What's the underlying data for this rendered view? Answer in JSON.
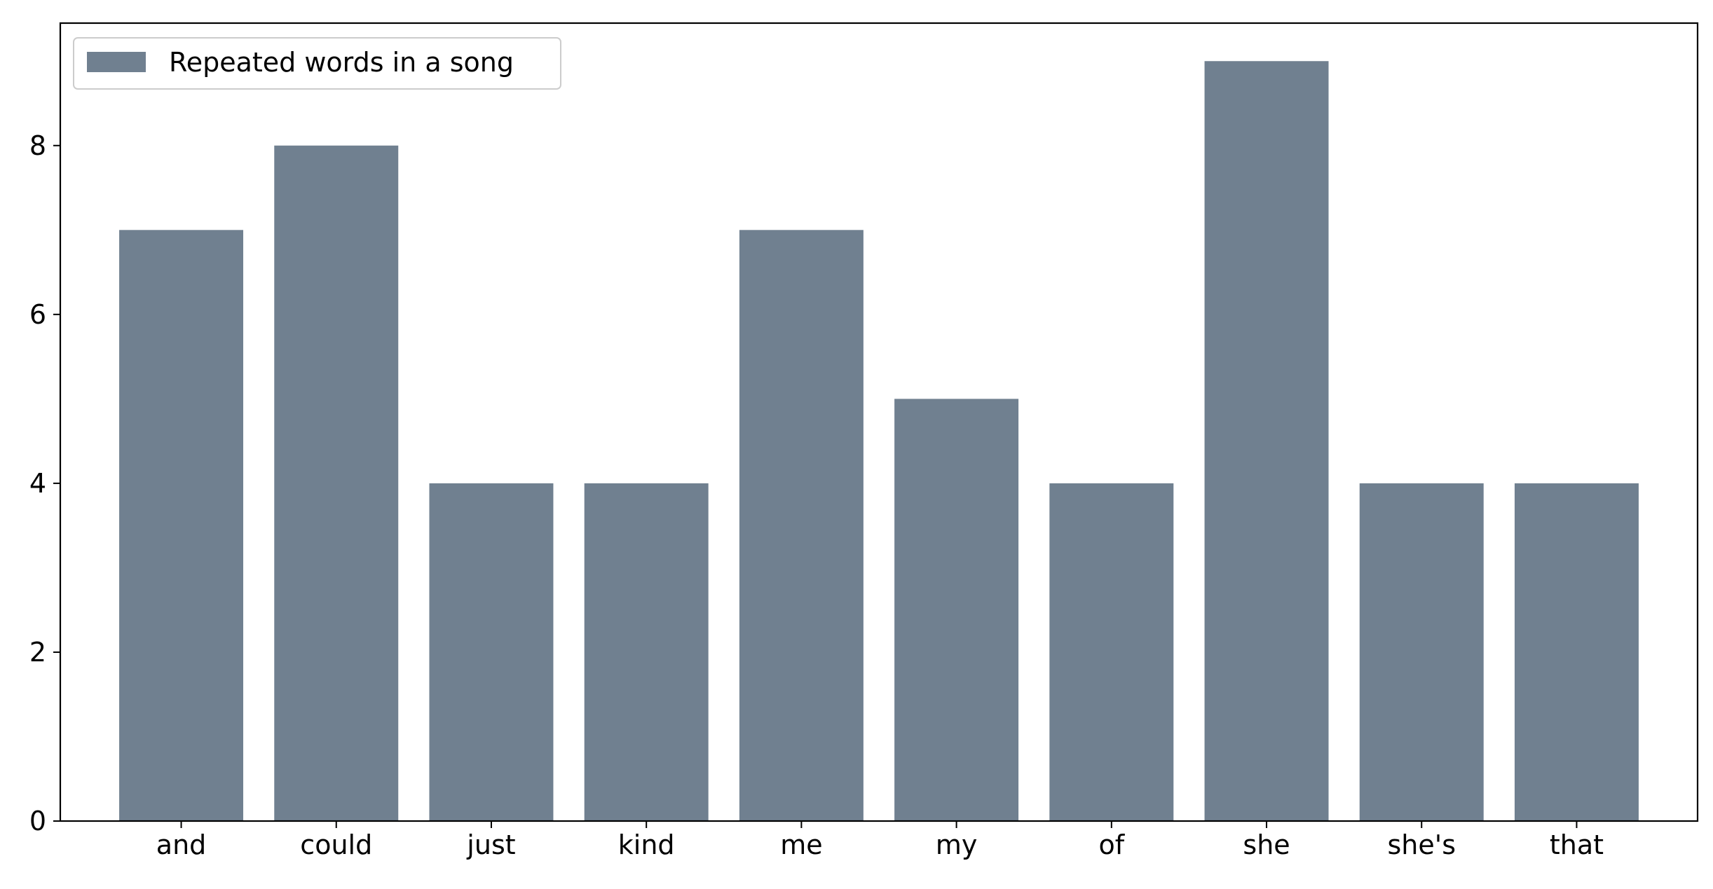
{
  "chart_data": {
    "type": "bar",
    "categories": [
      "and",
      "could",
      "just",
      "kind",
      "me",
      "my",
      "of",
      "she",
      "she's",
      "that"
    ],
    "series": [
      {
        "name": "Repeated words in a song",
        "values": [
          7,
          8,
          4,
          4,
          7,
          5,
          4,
          9,
          4,
          4
        ],
        "color": "#708090"
      }
    ],
    "title": "",
    "xlabel": "",
    "ylabel": "",
    "ylim": [
      0,
      9.45
    ],
    "yticks": [
      0,
      2,
      4,
      6,
      8
    ],
    "grid": false,
    "legend_position": "top-left"
  }
}
